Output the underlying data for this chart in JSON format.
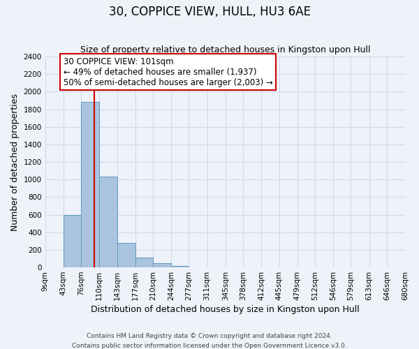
{
  "title": "30, COPPICE VIEW, HULL, HU3 6AE",
  "subtitle": "Size of property relative to detached houses in Kingston upon Hull",
  "xlabel": "Distribution of detached houses by size in Kingston upon Hull",
  "ylabel": "Number of detached properties",
  "bar_edges": [
    9,
    43,
    76,
    110,
    143,
    177,
    210,
    244,
    277,
    311,
    345,
    378,
    412,
    445,
    479,
    512,
    546,
    579,
    613,
    646,
    680
  ],
  "bar_heights": [
    0,
    600,
    1880,
    1030,
    280,
    110,
    45,
    20,
    0,
    0,
    0,
    0,
    0,
    0,
    0,
    0,
    0,
    0,
    0,
    0
  ],
  "bar_color": "#aac4e0",
  "bar_edge_color": "#5a9abf",
  "vline_x": 101,
  "vline_color": "#cc0000",
  "annotation_title": "30 COPPICE VIEW: 101sqm",
  "annotation_line1": "← 49% of detached houses are smaller (1,937)",
  "annotation_line2": "50% of semi-detached houses are larger (2,003) →",
  "annotation_box_edge": "#cc0000",
  "ylim": [
    0,
    2400
  ],
  "yticks": [
    0,
    200,
    400,
    600,
    800,
    1000,
    1200,
    1400,
    1600,
    1800,
    2000,
    2200,
    2400
  ],
  "tick_labels": [
    "9sqm",
    "43sqm",
    "76sqm",
    "110sqm",
    "143sqm",
    "177sqm",
    "210sqm",
    "244sqm",
    "277sqm",
    "311sqm",
    "345sqm",
    "378sqm",
    "412sqm",
    "445sqm",
    "479sqm",
    "512sqm",
    "546sqm",
    "579sqm",
    "613sqm",
    "646sqm",
    "680sqm"
  ],
  "footer_line1": "Contains HM Land Registry data © Crown copyright and database right 2024.",
  "footer_line2": "Contains public sector information licensed under the Open Government Licence v3.0.",
  "background_color": "#eef2f9",
  "grid_color": "#c8d4e8",
  "title_fontsize": 12,
  "subtitle_fontsize": 9,
  "axis_label_fontsize": 9,
  "tick_fontsize": 7.5,
  "footer_fontsize": 6.5,
  "annotation_fontsize": 8.5
}
